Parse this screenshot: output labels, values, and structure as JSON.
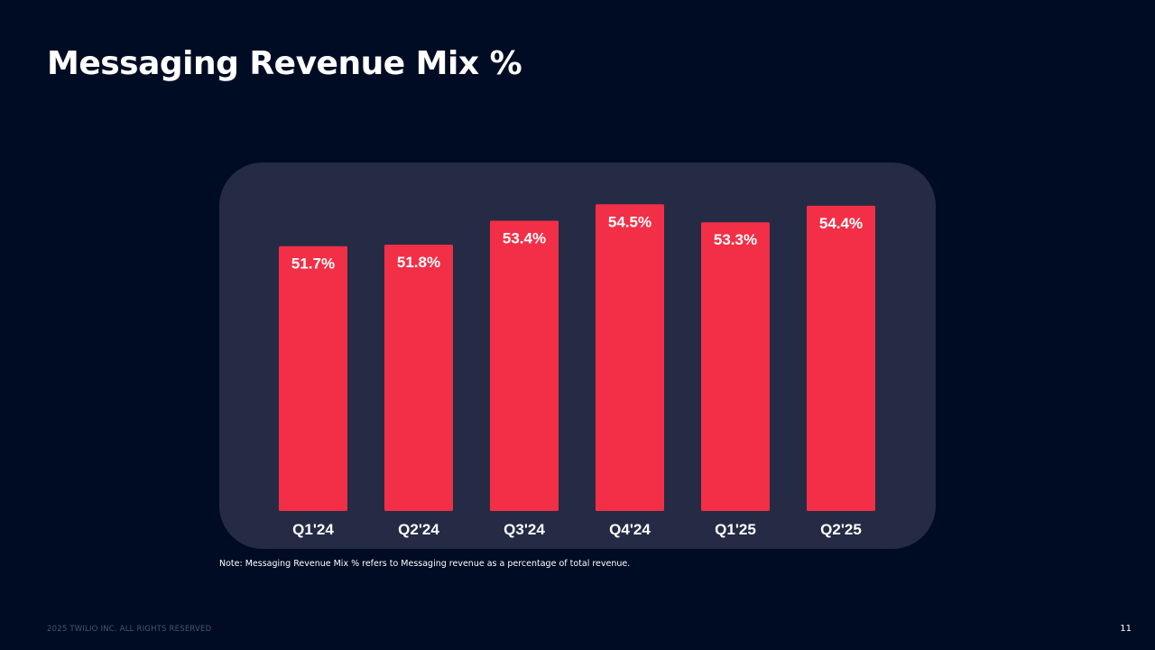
{
  "slide": {
    "title": "Messaging Revenue Mix %",
    "note": "Note: Messaging Revenue Mix % refers to Messaging revenue as a percentage of total revenue.",
    "footer": "2025 TWILIO INC. ALL RIGHTS RESERVED",
    "page_number": "11"
  },
  "colors": {
    "background": "#000c24",
    "panel": "#252b45",
    "bar": "#f22f46",
    "text": "#ffffff"
  },
  "chart_data": {
    "type": "bar",
    "title": "Messaging Revenue Mix %",
    "xlabel": "",
    "ylabel": "",
    "categories": [
      "Q1'24",
      "Q2'24",
      "Q3'24",
      "Q4'24",
      "Q1'25",
      "Q2'25"
    ],
    "values": [
      51.7,
      51.8,
      53.4,
      54.5,
      53.3,
      54.4
    ],
    "data_labels": [
      "51.7%",
      "51.8%",
      "53.4%",
      "54.5%",
      "53.3%",
      "54.4%"
    ],
    "ylim": [
      34,
      55
    ],
    "grid": false,
    "legend": "none"
  }
}
